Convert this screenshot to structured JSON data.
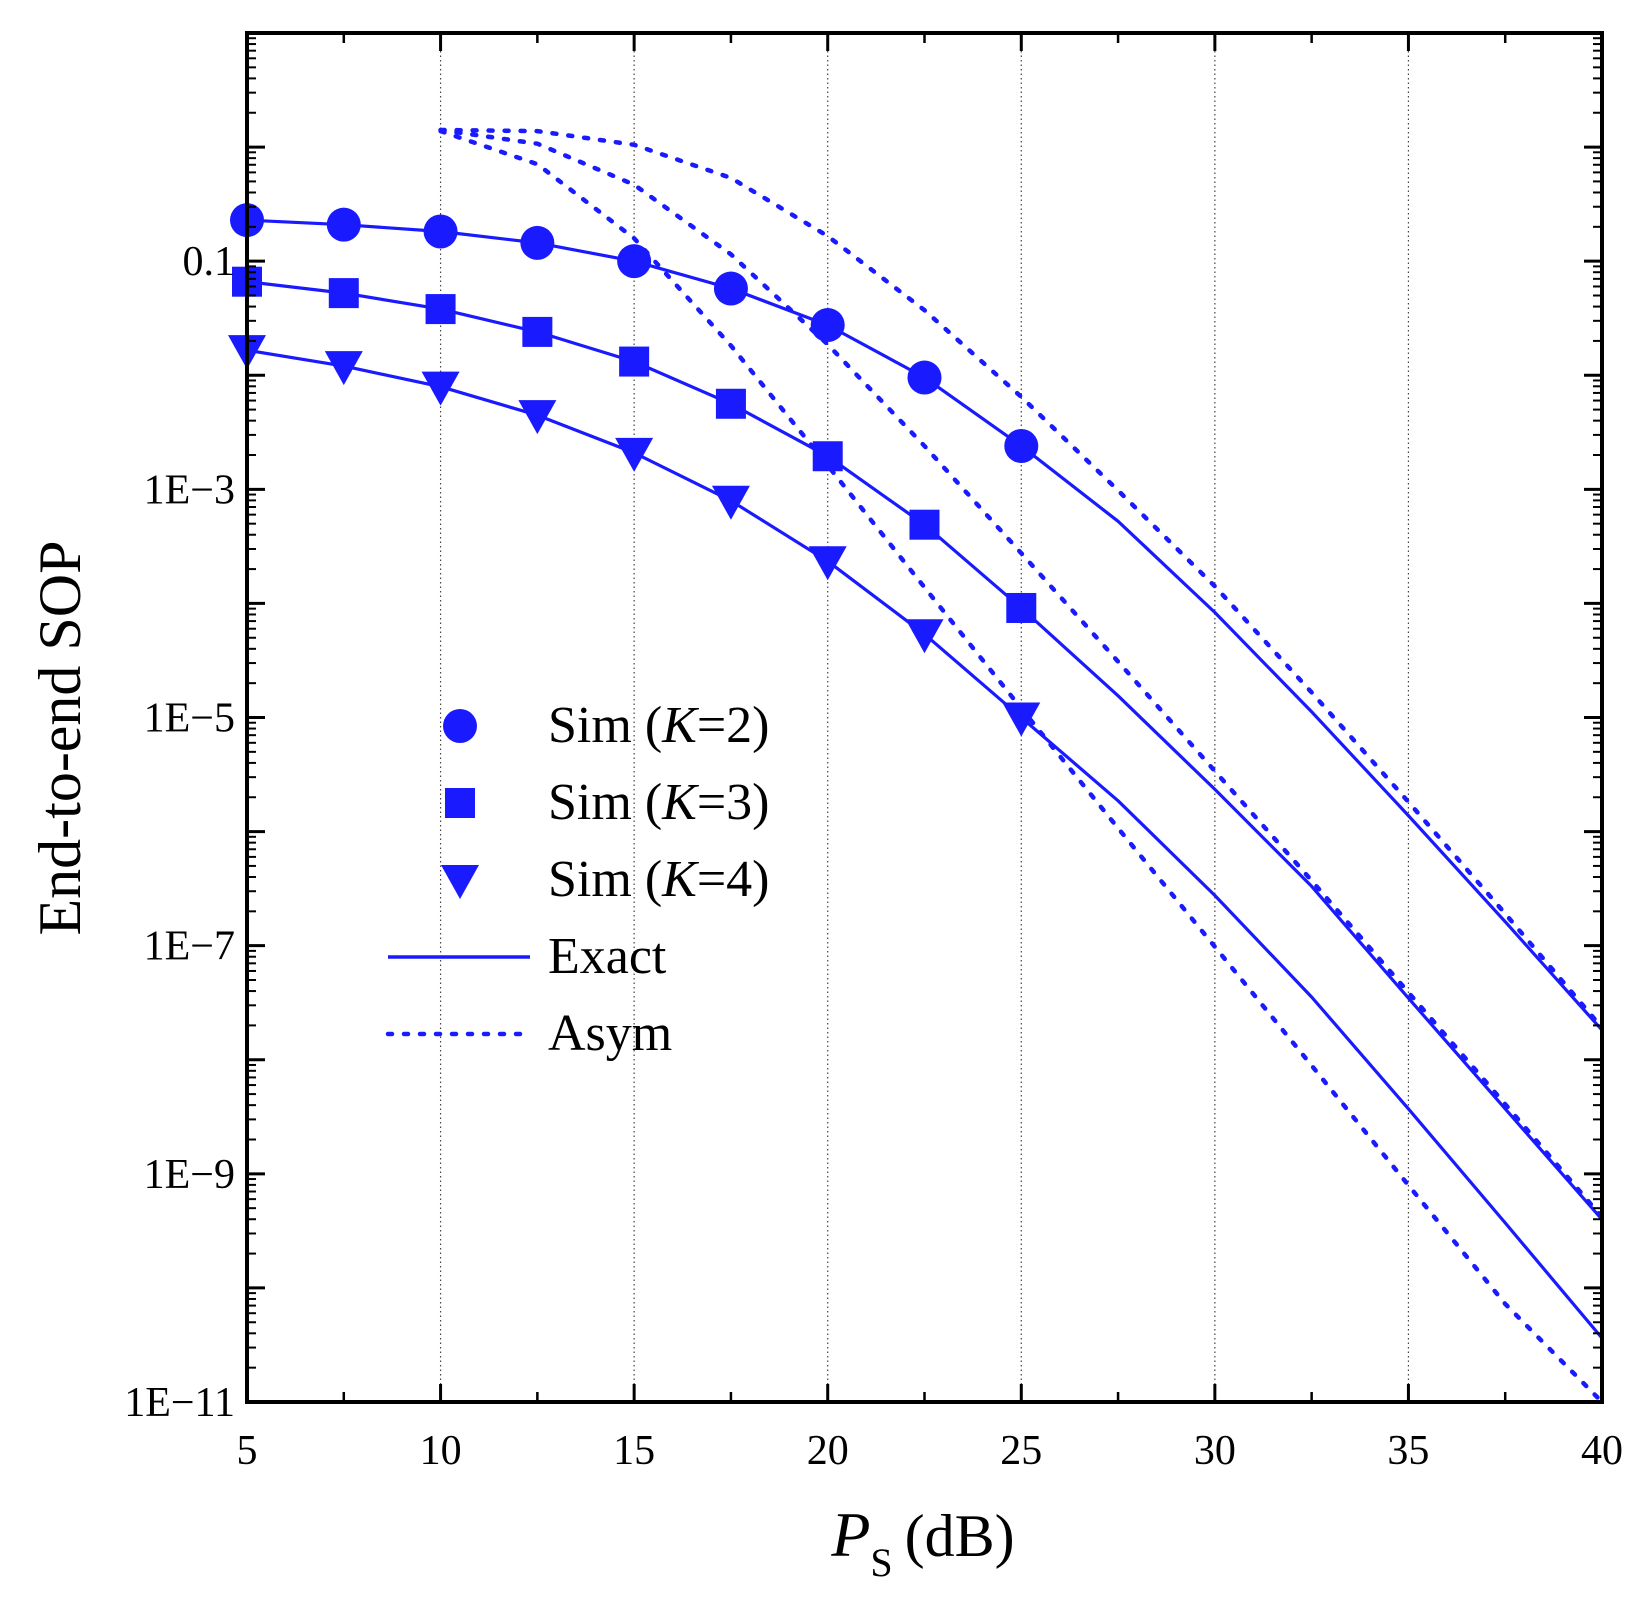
{
  "chart_data": {
    "type": "line",
    "title": "",
    "xlabel_main": "P",
    "xlabel_sub": "S",
    "xlabel_unit": "(dB)",
    "ylabel": "End-to-end SOP",
    "xlim": [
      5,
      40
    ],
    "ylim_log10": [
      -11,
      1
    ],
    "x_ticks": [
      5,
      10,
      15,
      20,
      25,
      30,
      35,
      40
    ],
    "x_tick_labels": [
      "5",
      "10",
      "15",
      "20",
      "25",
      "30",
      "35",
      "40"
    ],
    "y_ticks_log10": [
      -1,
      -3,
      -5,
      -7,
      -9,
      -11
    ],
    "y_tick_labels": [
      "0.1",
      "1E−3",
      "1E−5",
      "1E−7",
      "1E−9",
      "1E−11"
    ],
    "grid": "vertical dotted at major x ticks",
    "legend_position": "center-left",
    "legend": [
      {
        "label_prefix": "Sim (",
        "label_var": "K",
        "label_suffix": "=2)",
        "marker": "circle"
      },
      {
        "label_prefix": "Sim (",
        "label_var": "K",
        "label_suffix": "=3)",
        "marker": "square"
      },
      {
        "label_prefix": "Sim (",
        "label_var": "K",
        "label_suffix": "=4)",
        "marker": "triangle-down"
      },
      {
        "label": "Exact",
        "line": "solid"
      },
      {
        "label": "Asym",
        "line": "dotted"
      }
    ],
    "color": "#1a1aff",
    "series": [
      {
        "name": "Exact (K=2)",
        "style": "solid",
        "x": [
          5,
          7.5,
          10,
          12.5,
          15,
          17.5,
          20,
          22.5,
          25,
          27.5,
          30,
          32.5,
          35,
          37.5,
          40
        ],
        "log10_y": [
          -0.64,
          -0.68,
          -0.74,
          -0.84,
          -1.0,
          -1.24,
          -1.56,
          -2.02,
          -2.62,
          -3.28,
          -4.08,
          -4.95,
          -5.86,
          -6.79,
          -7.74
        ]
      },
      {
        "name": "Exact (K=3)",
        "style": "solid",
        "x": [
          5,
          7.5,
          10,
          12.5,
          15,
          17.5,
          20,
          22.5,
          25,
          27.5,
          30,
          32.5,
          35,
          37.5,
          40
        ],
        "log10_y": [
          -1.18,
          -1.28,
          -1.42,
          -1.62,
          -1.88,
          -2.25,
          -2.71,
          -3.31,
          -4.04,
          -4.81,
          -5.63,
          -6.48,
          -7.46,
          -8.43,
          -9.4
        ]
      },
      {
        "name": "Exact (K=4)",
        "style": "solid",
        "x": [
          5,
          7.5,
          10,
          12.5,
          15,
          17.5,
          20,
          22.5,
          25,
          27.5,
          30,
          32.5,
          35,
          37.5,
          40
        ],
        "log10_y": [
          -1.78,
          -1.92,
          -2.1,
          -2.35,
          -2.68,
          -3.1,
          -3.63,
          -4.27,
          -5.0,
          -5.73,
          -6.56,
          -7.45,
          -8.43,
          -9.43,
          -10.44
        ]
      },
      {
        "name": "Asym (K=2)",
        "style": "dotted",
        "x": [
          10,
          12.5,
          15,
          17.5,
          20,
          22.5,
          25,
          27.5,
          30,
          32.5,
          35,
          37.5,
          40
        ],
        "log10_y": [
          0.15,
          0.14,
          0.02,
          -0.27,
          -0.78,
          -1.43,
          -2.19,
          -3.01,
          -3.85,
          -4.78,
          -5.74,
          -6.72,
          -7.72
        ]
      },
      {
        "name": "Asym (K=3)",
        "style": "dotted",
        "x": [
          10,
          12.5,
          15,
          17.5,
          20,
          22.5,
          25,
          27.5,
          30,
          32.5,
          35,
          37.5,
          40
        ],
        "log10_y": [
          0.15,
          0.03,
          -0.33,
          -0.94,
          -1.73,
          -2.62,
          -3.56,
          -4.51,
          -5.47,
          -6.43,
          -7.41,
          -8.39,
          -9.38
        ]
      },
      {
        "name": "Asym (K=4)",
        "style": "dotted",
        "x": [
          10,
          12.5,
          15,
          17.5,
          20,
          22.5,
          25,
          27.5,
          30,
          32.5,
          35,
          37.5,
          40
        ],
        "log10_y": [
          0.14,
          -0.15,
          -0.8,
          -1.74,
          -2.79,
          -3.86,
          -4.92,
          -5.97,
          -7.01,
          -8.05,
          -9.1,
          -10.14,
          -11.0
        ]
      },
      {
        "name": "Sim (K=2)",
        "style": "marker",
        "marker": "circle",
        "x": [
          5,
          7.5,
          10,
          12.5,
          15,
          17.5,
          20,
          22.5,
          25
        ],
        "log10_y": [
          -0.64,
          -0.68,
          -0.74,
          -0.84,
          -1.0,
          -1.24,
          -1.56,
          -2.02,
          -2.62
        ]
      },
      {
        "name": "Sim (K=3)",
        "style": "marker",
        "marker": "square",
        "x": [
          5,
          7.5,
          10,
          12.5,
          15,
          17.5,
          20,
          22.5,
          25
        ],
        "log10_y": [
          -1.18,
          -1.28,
          -1.42,
          -1.62,
          -1.88,
          -2.25,
          -2.71,
          -3.31,
          -4.04
        ]
      },
      {
        "name": "Sim (K=4)",
        "style": "marker",
        "marker": "triangle-down",
        "x": [
          5,
          7.5,
          10,
          12.5,
          15,
          17.5,
          20,
          22.5,
          25
        ],
        "log10_y": [
          -1.78,
          -1.92,
          -2.1,
          -2.35,
          -2.68,
          -3.1,
          -3.63,
          -4.27,
          -5.0
        ]
      }
    ]
  }
}
